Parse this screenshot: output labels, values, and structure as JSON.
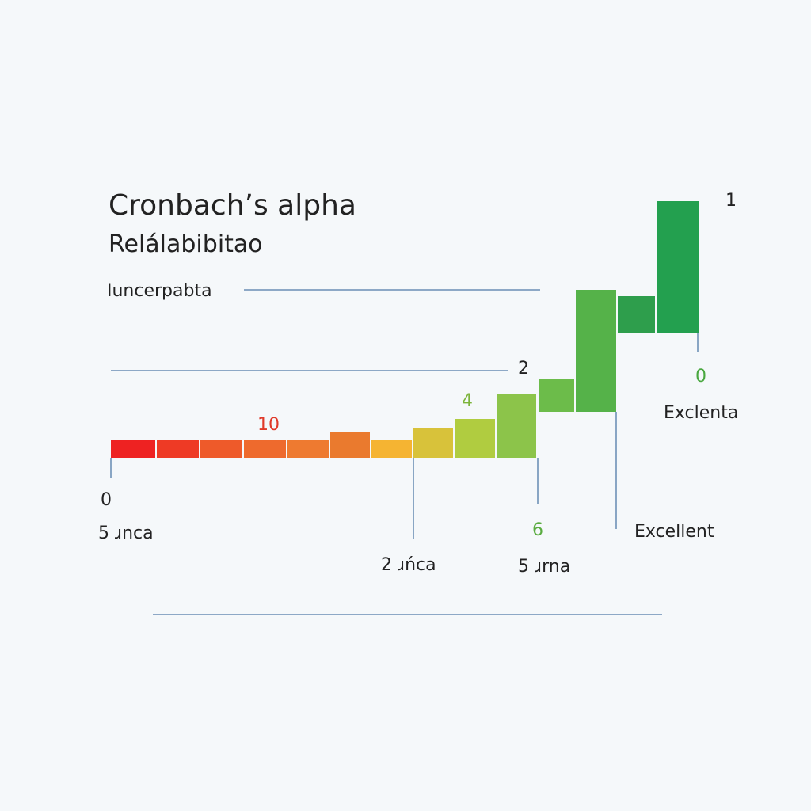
{
  "header": {
    "title": "Cronbach’s alpha",
    "subtitle": "Relálabibitao"
  },
  "labels": [
    "Iuncerpabta",
    "1",
    "2",
    "0",
    "Exclenta",
    "10",
    "4",
    "0",
    "5 ɹnca",
    "2 ɹńca",
    "6",
    "5 ɹrna",
    "Excellent"
  ]
}
